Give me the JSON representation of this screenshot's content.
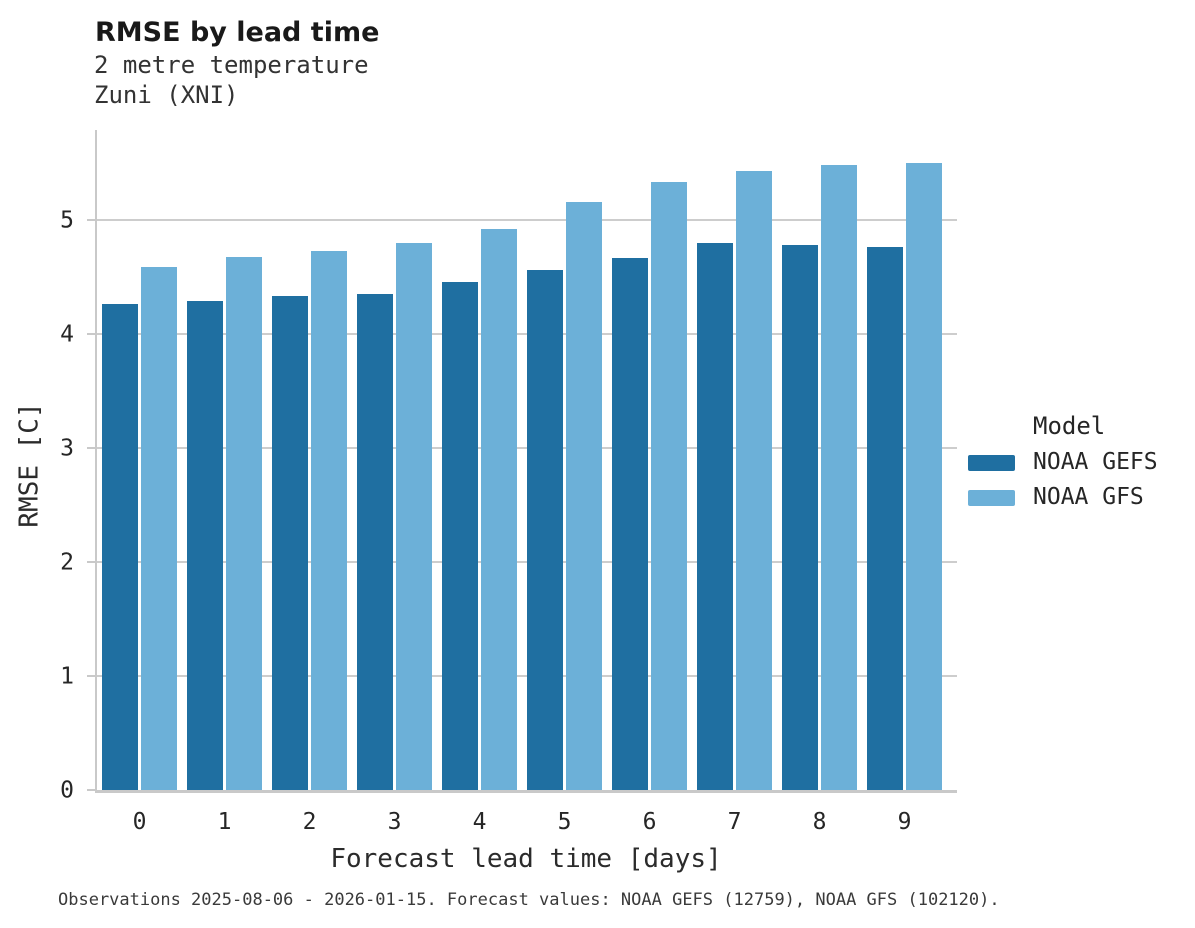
{
  "header": {
    "title": "RMSE by lead time",
    "subtitle_line1": "2 metre temperature",
    "subtitle_line2": "Zuni (XNI)"
  },
  "chart_data": {
    "type": "bar",
    "title": "RMSE by lead time",
    "subtitle": [
      "2 metre temperature",
      "Zuni (XNI)"
    ],
    "categories": [
      "0",
      "1",
      "2",
      "3",
      "4",
      "5",
      "6",
      "7",
      "8",
      "9"
    ],
    "series": [
      {
        "name": "NOAA GEFS",
        "color": "#1f6fa1",
        "values": [
          4.26,
          4.29,
          4.33,
          4.35,
          4.46,
          4.56,
          4.67,
          4.8,
          4.78,
          4.76
        ]
      },
      {
        "name": "NOAA GFS",
        "color": "#6cb0d8",
        "values": [
          4.59,
          4.68,
          4.73,
          4.8,
          4.92,
          5.16,
          5.33,
          5.43,
          5.48,
          5.5
        ]
      }
    ],
    "xlabel": "Forecast lead time [days]",
    "ylabel": "RMSE [C]",
    "yticks": [
      0,
      1,
      2,
      3,
      4,
      5
    ],
    "ylim": [
      0,
      5.79
    ],
    "grid": "horizontal",
    "legend_position": "right",
    "grid_color": "#cdcdcd",
    "axis_color": "#c9c9c9"
  },
  "legend": {
    "title": "Model"
  },
  "footer": {
    "caption": "Observations 2025-08-06 - 2026-01-15. Forecast values: NOAA GEFS (12759), NOAA GFS (102120)."
  }
}
